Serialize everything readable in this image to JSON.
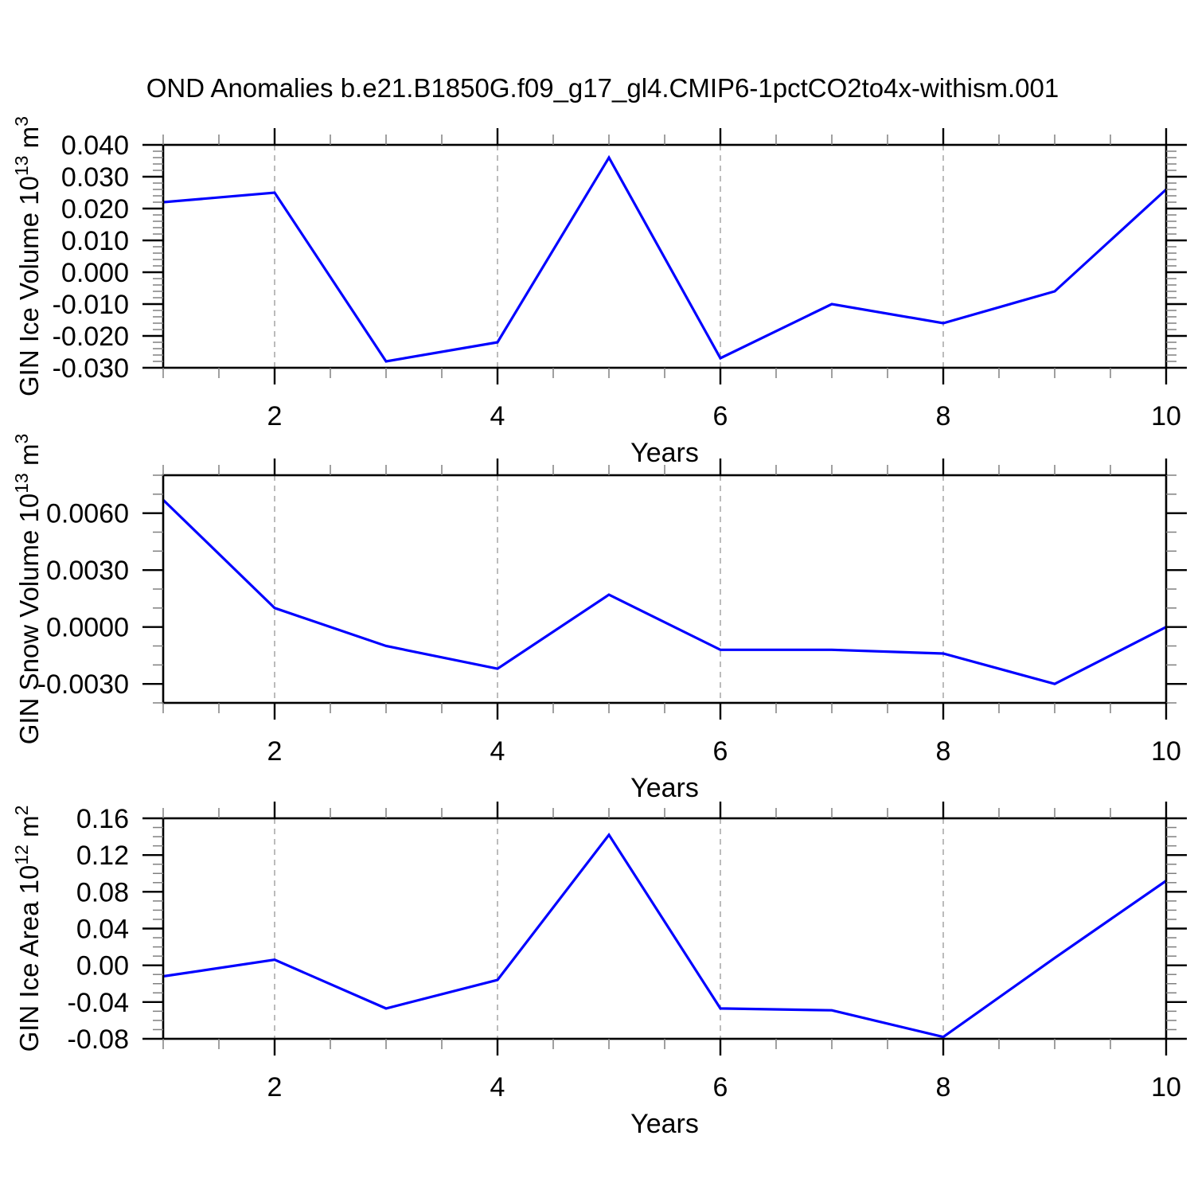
{
  "title": "OND Anomalies b.e21.B1850G.f09_g17_gl4.CMIP6-1pctCO2to4x-withism.001",
  "style": {
    "line_color": "#0000ff",
    "grid_color": "#b4b4b4",
    "axis_color": "#000000",
    "minor_tick_color": "#808080",
    "background": "#ffffff"
  },
  "x_axis": {
    "label": "Years",
    "min": 1,
    "max": 10,
    "labeled_ticks": [
      2,
      4,
      6,
      8,
      10
    ],
    "minor_step": 0.5,
    "gridlines": [
      2,
      4,
      6,
      8
    ]
  },
  "chart_data": [
    {
      "type": "line",
      "panel": "gin-ice-volume",
      "ylabel": "GIN Ice Volume 10^13 m^3",
      "ylabel_parts": [
        {
          "text": "GIN Ice Volume 10"
        },
        {
          "sup": "13"
        },
        {
          "text": " m"
        },
        {
          "sup": "3"
        }
      ],
      "xlabel": "Years",
      "x": [
        1,
        2,
        3,
        4,
        5,
        6,
        7,
        8,
        9,
        10
      ],
      "values": [
        0.022,
        0.025,
        -0.028,
        -0.022,
        0.036,
        -0.027,
        -0.01,
        -0.016,
        -0.006,
        0.026
      ],
      "ylim": [
        -0.03,
        0.04
      ],
      "ytick_major": 0.01,
      "ytick_minor": 0.002,
      "y_decimals": 3,
      "ytick_labels": [
        "0.040",
        "0.030",
        "0.020",
        "0.010",
        "0.000",
        "-0.010",
        "-0.020",
        "-0.030"
      ]
    },
    {
      "type": "line",
      "panel": "gin-snow-volume",
      "ylabel": "GIN Snow Volume 10^13 m^3",
      "ylabel_parts": [
        {
          "text": "GIN Snow Volume 10"
        },
        {
          "sup": "13"
        },
        {
          "text": " m"
        },
        {
          "sup": "3"
        }
      ],
      "xlabel": "Years",
      "x": [
        1,
        2,
        3,
        4,
        5,
        6,
        7,
        8,
        9,
        10
      ],
      "values": [
        0.0067,
        0.001,
        -0.001,
        -0.0022,
        0.0017,
        -0.0012,
        -0.0012,
        -0.0014,
        -0.003,
        0.0
      ],
      "ylim": [
        -0.004,
        0.008
      ],
      "ytick_major": 0.003,
      "ytick_minor": 0.001,
      "y_decimals": 4,
      "ytick_labels": [
        "0.0060",
        "0.0030",
        "0.0000",
        "-0.0030"
      ]
    },
    {
      "type": "line",
      "panel": "gin-ice-area",
      "ylabel": "GIN Ice Area 10^12 m^2",
      "ylabel_parts": [
        {
          "text": "GIN Ice Area 10"
        },
        {
          "sup": "12"
        },
        {
          "text": " m"
        },
        {
          "sup": "2"
        }
      ],
      "xlabel": "Years",
      "x": [
        1,
        2,
        3,
        4,
        5,
        6,
        7,
        8,
        9,
        10
      ],
      "values": [
        -0.012,
        0.006,
        -0.047,
        -0.016,
        0.142,
        -0.047,
        -0.049,
        -0.078,
        0.008,
        0.092
      ],
      "ylim": [
        -0.08,
        0.16
      ],
      "ytick_major": 0.04,
      "ytick_minor": 0.01,
      "y_decimals": 2,
      "ytick_labels": [
        "0.16",
        "0.12",
        "0.08",
        "0.04",
        "0.00",
        "-0.04",
        "-0.08"
      ]
    }
  ]
}
